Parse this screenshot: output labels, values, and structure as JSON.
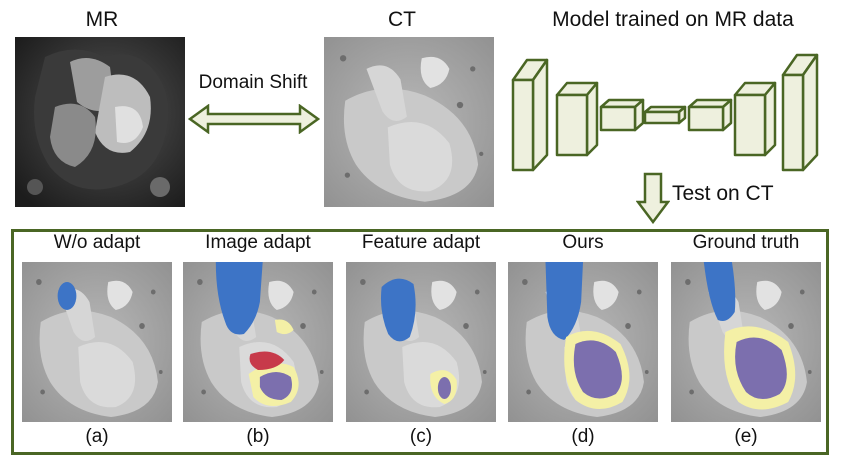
{
  "top": {
    "mr_label": "MR",
    "ct_label": "CT",
    "model_label": "Model trained on MR data",
    "shift_label": "Domain Shift",
    "test_label": "Test on CT"
  },
  "panels": [
    {
      "title": "W/o adapt",
      "caption": "(a)"
    },
    {
      "title": "Image adapt",
      "caption": "(b)"
    },
    {
      "title": "Feature adapt",
      "caption": "(c)"
    },
    {
      "title": "Ours",
      "caption": "(d)"
    },
    {
      "title": "Ground truth",
      "caption": "(e)"
    }
  ],
  "colors": {
    "frame_green": "#4a6624",
    "block_fill": "#eef0de",
    "aorta_blue": "#3d74c6",
    "myocardium_yellow": "#f4f0a6",
    "ventricle_purple": "#7c6fae",
    "atrium_red": "#c73a4a"
  }
}
